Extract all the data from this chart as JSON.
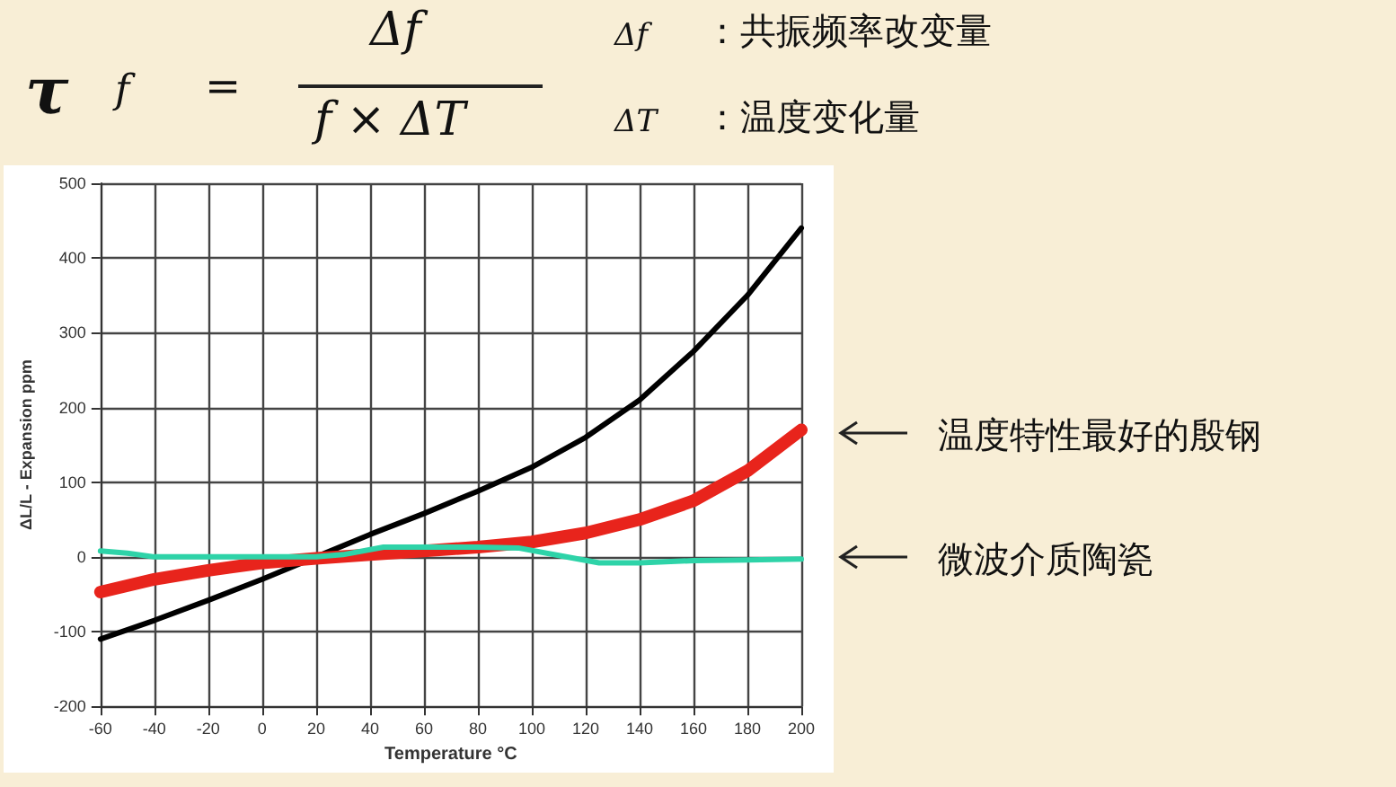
{
  "chart_data": {
    "type": "line",
    "xlabel": "Temperature °C",
    "ylabel": "ΔL/L - Expansion ppm",
    "x": [
      -60,
      -40,
      -20,
      0,
      20,
      40,
      60,
      80,
      100,
      120,
      140,
      160,
      180,
      200
    ],
    "series": [
      {
        "color": "#000000",
        "values": [
          -110,
          -85,
          -58,
          -30,
          0,
          30,
          58,
          88,
          120,
          160,
          210,
          275,
          350,
          440
        ]
      },
      {
        "color": "#e8241c",
        "values": [
          -47,
          -30,
          -18,
          -8,
          -2,
          3,
          8,
          13,
          20,
          32,
          50,
          75,
          115,
          170
        ]
      },
      {
        "color": "#2ed3a8",
        "x": [
          -60,
          -50,
          -40,
          -20,
          0,
          20,
          30,
          45,
          80,
          95,
          110,
          125,
          140,
          160,
          180,
          200
        ],
        "values": [
          8,
          5,
          0,
          0,
          0,
          0,
          3,
          13,
          13,
          12,
          2,
          -8,
          -8,
          -5,
          -4,
          -3
        ]
      }
    ],
    "xlim": [
      -60,
      200
    ],
    "xticks": [
      -60,
      -40,
      -20,
      0,
      20,
      40,
      60,
      80,
      100,
      120,
      140,
      160,
      180,
      200
    ],
    "ylim": [
      -200,
      500
    ],
    "yticks": [
      -200,
      -100,
      0,
      100,
      200,
      300,
      400,
      500
    ],
    "grid": true,
    "marker": "none",
    "line_style": "solid",
    "annotations": [
      "τ",
      "f",
      "=",
      "Δf",
      "f × ΔT",
      "Δf",
      "：共振频率改变量",
      "ΔT",
      "：温度变化量",
      "温度特性最好的殷钢",
      "微波介质陶瓷"
    ]
  }
}
